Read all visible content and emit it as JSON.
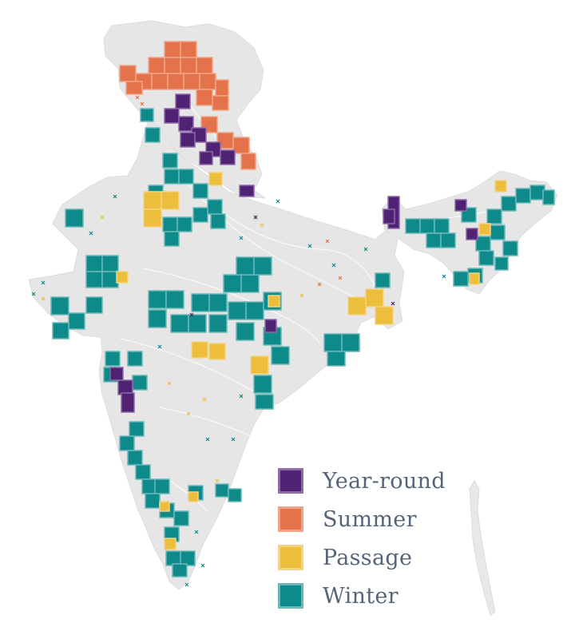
{
  "legend": {
    "items": [
      {
        "label": "Year-round",
        "fill": "#4f2273",
        "border": "#8e6aa8"
      },
      {
        "label": "Summer",
        "fill": "#e4724a",
        "border": "#efa487"
      },
      {
        "label": "Passage",
        "fill": "#ecbe3b",
        "border": "#f3d485"
      },
      {
        "label": "Winter",
        "fill": "#0f8a8a",
        "border": "#6ab7b9"
      }
    ]
  },
  "colors": {
    "land": "#e6e6e6",
    "land_relief": "#dcdcdc",
    "rivers": "#ffffff",
    "record_marks": "mixed"
  },
  "icons": {
    "record_marker": "cross-marker-icon"
  }
}
